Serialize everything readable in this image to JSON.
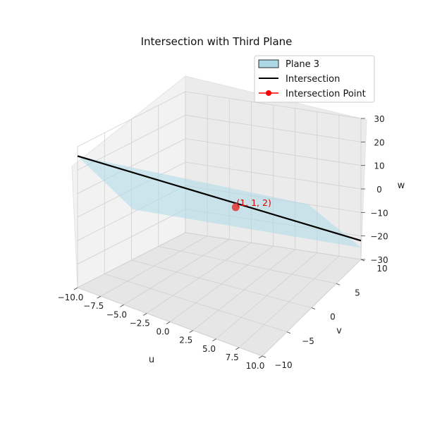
{
  "chart_data": {
    "type": "3d-surface-line",
    "title": "Intersection with Third Plane",
    "xlabel": "u",
    "ylabel": "v",
    "zlabel": "w",
    "xlim": [
      -10,
      10
    ],
    "ylim": [
      -10,
      10
    ],
    "zlim": [
      -30,
      30
    ],
    "x_ticks": [
      "−10.0",
      "−7.5",
      "−5.0",
      "−2.5",
      "0.0",
      "2.5",
      "5.0",
      "7.5",
      "10.0"
    ],
    "y_ticks": [
      "−10",
      "−5",
      "0",
      "5",
      "10"
    ],
    "z_ticks": [
      "−30",
      "−20",
      "−10",
      "0",
      "10",
      "20",
      "30"
    ],
    "legend_placement": "top-right",
    "legend": [
      {
        "label": "Plane 3",
        "kind": "patch",
        "color": "#add8e6"
      },
      {
        "label": "Intersection",
        "kind": "line",
        "color": "#000000"
      },
      {
        "label": "Intersection Point",
        "kind": "line-marker",
        "color": "#ff0000"
      }
    ],
    "point": {
      "u": 1,
      "v": 1,
      "w": 2,
      "label": "(1, 1, 2)",
      "color": "#e05050"
    },
    "intersection_line": {
      "from": [
        -10,
        -10,
        26
      ],
      "to": [
        10,
        10,
        -22
      ],
      "color": "#000000"
    },
    "plane_color": "#add8e6",
    "grid": true
  }
}
